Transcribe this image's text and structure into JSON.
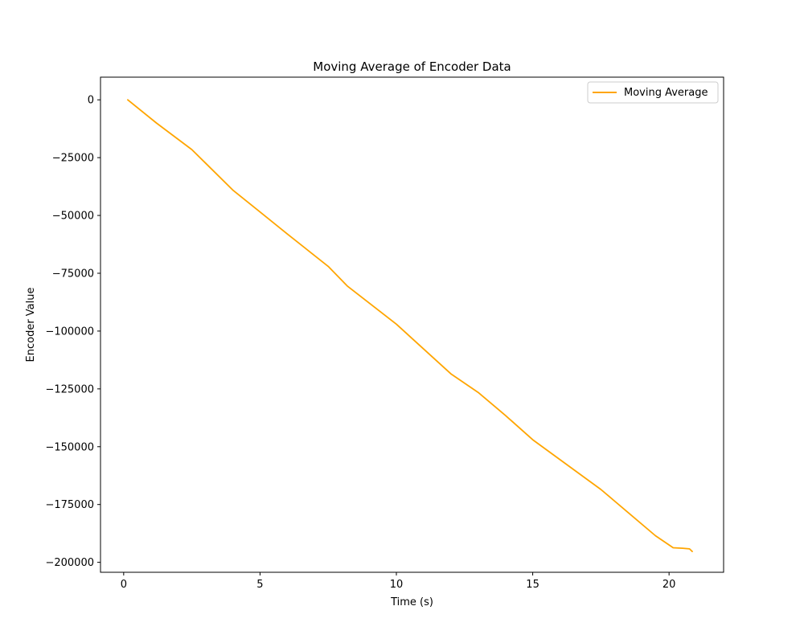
{
  "chart_data": {
    "type": "line",
    "title": "Moving Average of Encoder Data",
    "xlabel": "Time (s)",
    "ylabel": "Encoder Value",
    "xlim": [
      -0.85,
      22
    ],
    "ylim": [
      -204300,
      9800
    ],
    "xticks": [
      0,
      5,
      10,
      15,
      20
    ],
    "xtick_labels": [
      "0",
      "5",
      "10",
      "15",
      "20"
    ],
    "yticks": [
      0,
      -25000,
      -50000,
      -75000,
      -100000,
      -125000,
      -150000,
      -175000,
      -200000
    ],
    "ytick_labels": [
      "0",
      "−25000",
      "−50000",
      "−75000",
      "−100000",
      "−125000",
      "−150000",
      "−175000",
      "−200000"
    ],
    "grid": false,
    "legend_position": "upper right",
    "series": [
      {
        "name": "Moving Average",
        "color": "#ffa500",
        "x": [
          0.15,
          1.2,
          2.5,
          4.0,
          5.0,
          6.0,
          7.5,
          8.2,
          10.0,
          12.0,
          13.0,
          14.0,
          15.0,
          17.5,
          19.5,
          20.15,
          20.5,
          20.75,
          20.85
        ],
        "y": [
          0,
          -10000,
          -21500,
          -39000,
          -48500,
          -58000,
          -72000,
          -80500,
          -97000,
          -118500,
          -126500,
          -136500,
          -147000,
          -168500,
          -188500,
          -193700,
          -193900,
          -194200,
          -195300
        ]
      }
    ]
  }
}
